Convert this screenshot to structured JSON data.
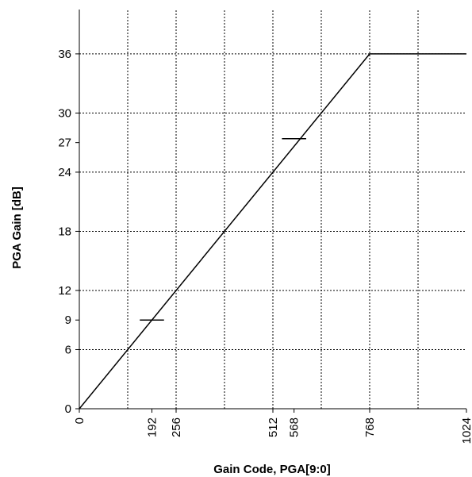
{
  "chart_data": {
    "type": "line",
    "title": "",
    "xlabel": "Gain Code, PGA[9:0]",
    "ylabel": "PGA Gain [dB]",
    "xlim": [
      0,
      1024
    ],
    "ylim": [
      0,
      40.5
    ],
    "x_ticks": [
      0,
      192,
      256,
      512,
      568,
      768,
      1024
    ],
    "x_tick_labels": [
      "0",
      "192",
      "256",
      "512",
      "568",
      "768",
      "1024"
    ],
    "y_ticks": [
      0,
      6,
      9,
      12,
      18,
      24,
      27,
      30,
      36
    ],
    "y_tick_labels": [
      "0",
      "6",
      "9",
      "12",
      "18",
      "24",
      "27",
      "30",
      "36"
    ],
    "x_grid": [
      128,
      256,
      384,
      512,
      640,
      768,
      896
    ],
    "y_grid": [
      6,
      12,
      18,
      24,
      30,
      36
    ],
    "grid": true,
    "grid_style": "dotted",
    "line_color": "#000000",
    "series": [
      {
        "x": [
          0,
          768,
          1024
        ],
        "y": [
          0,
          36,
          36
        ]
      }
    ],
    "markers": [
      {
        "x_start": 160,
        "x_end": 224,
        "y": 9
      },
      {
        "x_start": 536,
        "x_end": 600,
        "y": 27.4
      }
    ]
  }
}
